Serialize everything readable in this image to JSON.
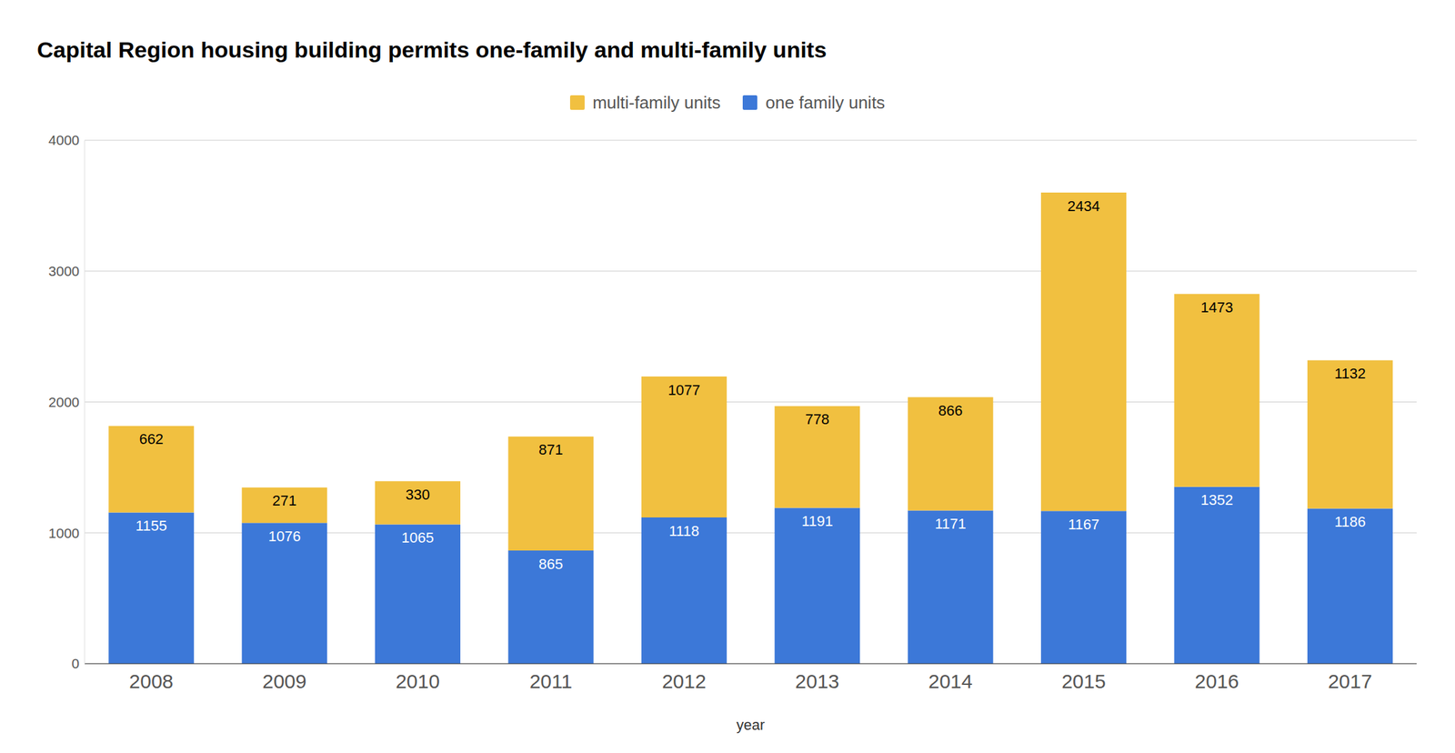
{
  "chart_data": {
    "type": "bar",
    "title": "Capital Region housing building permits one-family and multi-family units",
    "x_label": "year",
    "categories": [
      "2008",
      "2009",
      "2010",
      "2011",
      "2012",
      "2013",
      "2014",
      "2015",
      "2016",
      "2017"
    ],
    "series": [
      {
        "name": "one family units",
        "color": "#3c78d8",
        "values": [
          1155,
          1076,
          1065,
          865,
          1118,
          1191,
          1171,
          1167,
          1352,
          1186
        ]
      },
      {
        "name": "multi-family units",
        "color": "#f1c040",
        "values": [
          662,
          271,
          330,
          871,
          1077,
          778,
          866,
          2434,
          1473,
          1132
        ]
      }
    ],
    "ylim": [
      0,
      4000
    ],
    "yticks": [
      0,
      1000,
      2000,
      3000,
      4000
    ],
    "grid": true,
    "stacked": true,
    "data_labels": true,
    "legend": "top"
  }
}
